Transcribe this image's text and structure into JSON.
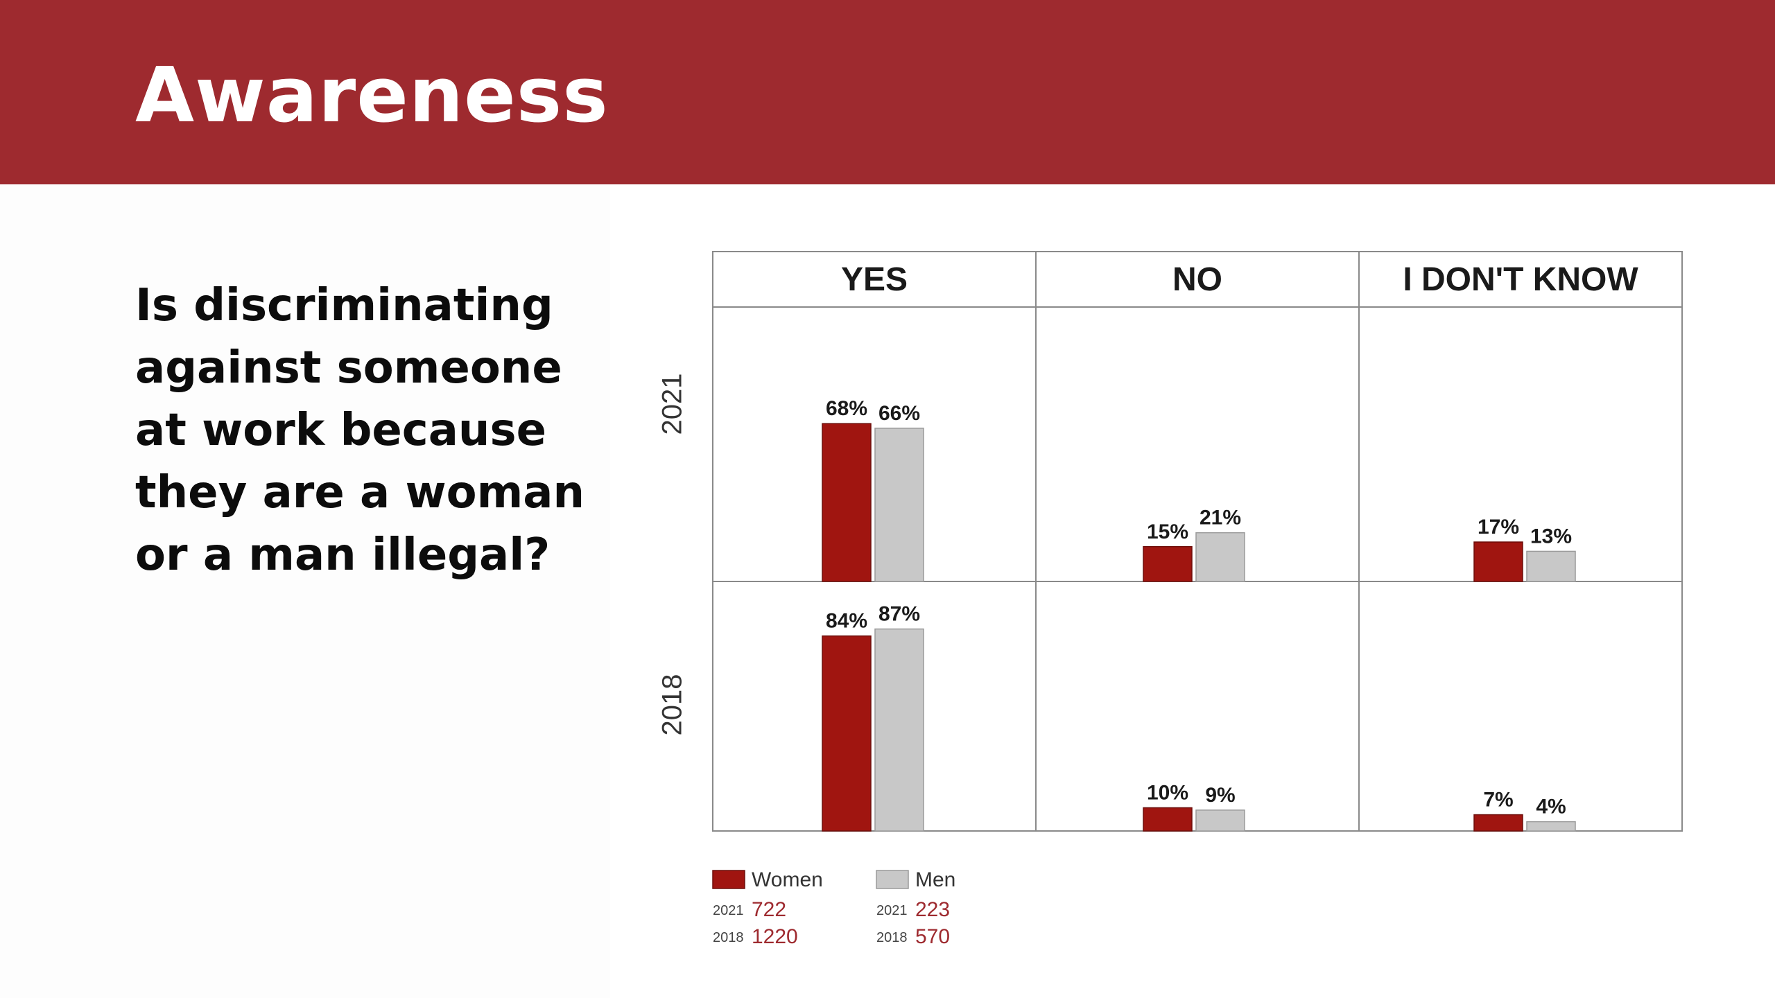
{
  "slide": {
    "title": "Awareness",
    "question": "Is discriminating against someone at work because they are a woman or a man illegal?"
  },
  "colors": {
    "banner": "#9e2a2f",
    "women": "#a01510",
    "men": "#c8c8c8",
    "sample_text": "#9e2a2f"
  },
  "chart_data": {
    "type": "bar",
    "columns": [
      "YES",
      "NO",
      "I DON'T KNOW"
    ],
    "rows": [
      "2021",
      "2018"
    ],
    "series": [
      {
        "name": "Women",
        "values": {
          "2021": [
            68,
            15,
            17
          ],
          "2018": [
            84,
            10,
            7
          ]
        }
      },
      {
        "name": "Men",
        "values": {
          "2021": [
            66,
            21,
            13
          ],
          "2018": [
            87,
            9,
            4
          ]
        }
      }
    ],
    "value_labels": {
      "2021": [
        [
          "68%",
          "66%"
        ],
        [
          "15%",
          "21%"
        ],
        [
          "17%",
          "13%"
        ]
      ],
      "2018": [
        [
          "84%",
          "87%"
        ],
        [
          "10%",
          "9%"
        ],
        [
          "7%",
          "4%"
        ]
      ]
    },
    "unit": "%",
    "legend": {
      "placement": "bottom-left",
      "entries": [
        {
          "name": "Women",
          "samples": [
            {
              "year": "2021",
              "n": "722"
            },
            {
              "year": "2018",
              "n": "1220"
            }
          ]
        },
        {
          "name": "Men",
          "samples": [
            {
              "year": "2021",
              "n": "223"
            },
            {
              "year": "2018",
              "n": "570"
            }
          ]
        }
      ]
    }
  }
}
